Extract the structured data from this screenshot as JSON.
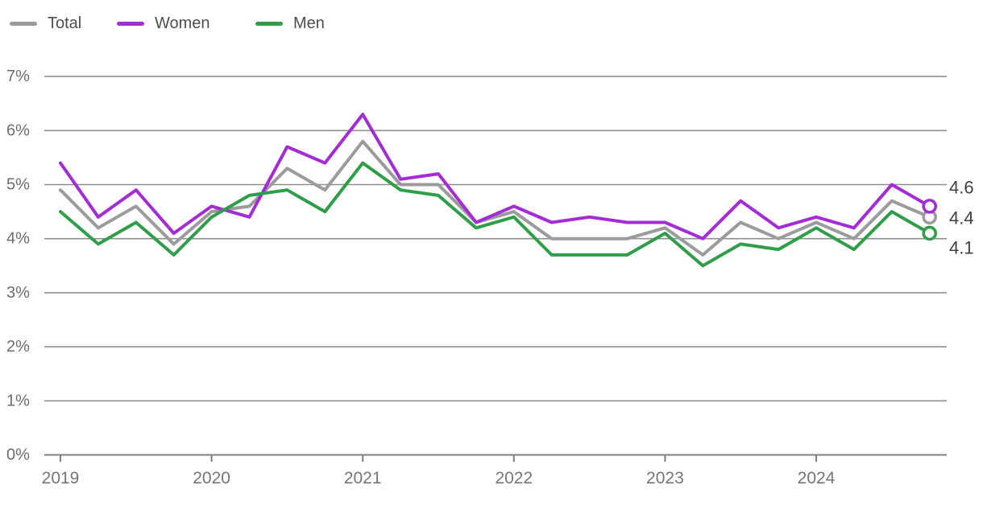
{
  "legend": {
    "items": [
      {
        "label": "Total",
        "color": "#9b9b9b"
      },
      {
        "label": "Women",
        "color": "#a42cd4"
      },
      {
        "label": "Men",
        "color": "#2f9e49"
      }
    ]
  },
  "chart_data": {
    "type": "line",
    "title": "",
    "xlabel": "",
    "ylabel": "",
    "x_unit": "quarterly",
    "x_tick_labels": [
      "2019",
      "2020",
      "2021",
      "2022",
      "2023",
      "2024"
    ],
    "y_tick_labels": [
      "0%",
      "1%",
      "2%",
      "3%",
      "4%",
      "5%",
      "6%",
      "7%"
    ],
    "ylim": [
      0,
      7
    ],
    "grid": true,
    "legend_position": "top-left",
    "series": [
      {
        "name": "Total",
        "color": "#9b9b9b",
        "end_label": "4.4",
        "values": [
          4.9,
          4.2,
          4.6,
          3.9,
          4.5,
          4.6,
          5.3,
          4.9,
          5.8,
          5.0,
          5.0,
          4.3,
          4.5,
          4.0,
          4.0,
          4.0,
          4.2,
          3.7,
          4.3,
          4.0,
          4.3,
          4.0,
          4.7,
          4.4
        ]
      },
      {
        "name": "Women",
        "color": "#a42cd4",
        "end_label": "4.6",
        "values": [
          5.4,
          4.4,
          4.9,
          4.1,
          4.6,
          4.4,
          5.7,
          5.4,
          6.3,
          5.1,
          5.2,
          4.3,
          4.6,
          4.3,
          4.4,
          4.3,
          4.3,
          4.0,
          4.7,
          4.2,
          4.4,
          4.2,
          5.0,
          4.6
        ]
      },
      {
        "name": "Men",
        "color": "#2f9e49",
        "end_label": "4.1",
        "values": [
          4.5,
          3.9,
          4.3,
          3.7,
          4.4,
          4.8,
          4.9,
          4.5,
          5.4,
          4.9,
          4.8,
          4.2,
          4.4,
          3.7,
          3.7,
          3.7,
          4.1,
          3.5,
          3.9,
          3.8,
          4.2,
          3.8,
          4.5,
          4.1
        ]
      }
    ],
    "colors": {
      "gridline": "#8f8f8f",
      "axis": "#7f7f7f",
      "y_tick_text": "#6d6d6d",
      "x_tick_text": "#757575",
      "end_label_text": "#404040"
    }
  }
}
